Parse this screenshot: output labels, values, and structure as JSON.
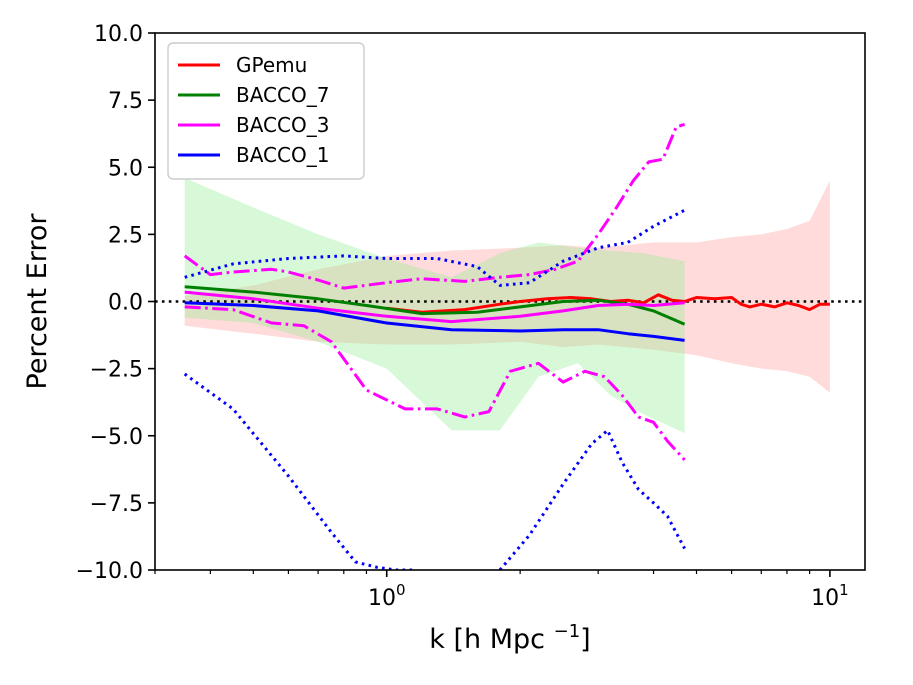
{
  "chart_data": {
    "type": "line",
    "xscale": "log",
    "xlabel": "k [h Mpc",
    "xlabel_sup": "−1",
    "xlabel_close": "]",
    "ylabel": "Percent Error",
    "xlim": [
      0.3,
      12
    ],
    "ylim": [
      -10,
      10
    ],
    "x_ticks": [
      {
        "value": 1,
        "base": "10",
        "exp": "0"
      },
      {
        "value": 10,
        "base": "10",
        "exp": "1"
      }
    ],
    "y_ticks": [
      {
        "value": 10,
        "label": "10.0"
      },
      {
        "value": 7.5,
        "label": "7.5"
      },
      {
        "value": 5,
        "label": "5.0"
      },
      {
        "value": 2.5,
        "label": "2.5"
      },
      {
        "value": 0,
        "label": "0.0"
      },
      {
        "value": -2.5,
        "label": "−2.5"
      },
      {
        "value": -5,
        "label": "−5.0"
      },
      {
        "value": -7.5,
        "label": "−7.5"
      },
      {
        "value": -10,
        "label": "−10.0"
      }
    ],
    "reference_line": {
      "y": 0,
      "style": "dotted",
      "color": "#000000"
    },
    "legend": {
      "location": "upper-left",
      "entries": [
        {
          "label": "GPemu",
          "color": "#ff0000"
        },
        {
          "label": "BACCO_7",
          "color": "#008000"
        },
        {
          "label": "BACCO_3",
          "color": "#ff00ff"
        },
        {
          "label": "BACCO_1",
          "color": "#0000ff"
        }
      ]
    },
    "bands": [
      {
        "name": "GPemu range",
        "color": "#ff9999",
        "opacity": 0.35,
        "x": [
          0.35,
          0.5,
          0.7,
          1.0,
          1.4,
          2.0,
          2.5,
          3.0,
          4.0,
          5.0,
          6.0,
          7.0,
          8.0,
          9.0,
          10.0
        ],
        "upper": [
          0.2,
          0.6,
          1.2,
          1.7,
          1.9,
          2.0,
          2.1,
          2.0,
          2.2,
          2.2,
          2.4,
          2.5,
          2.7,
          3.0,
          4.5
        ],
        "lower": [
          -0.9,
          -1.2,
          -1.5,
          -1.6,
          -1.6,
          -1.5,
          -1.7,
          -1.6,
          -1.8,
          -2.0,
          -2.3,
          -2.5,
          -2.6,
          -2.8,
          -3.4
        ]
      },
      {
        "name": "BACCO_7 range",
        "color": "#90ee90",
        "opacity": 0.35,
        "x": [
          0.35,
          0.5,
          0.7,
          1.0,
          1.4,
          1.8,
          2.2,
          2.7,
          3.2,
          3.8,
          4.7
        ],
        "upper": [
          4.6,
          3.5,
          2.5,
          1.6,
          0.9,
          1.8,
          2.2,
          2.0,
          1.9,
          1.8,
          1.5
        ],
        "lower": [
          -0.6,
          -0.8,
          -1.5,
          -2.5,
          -4.8,
          -4.8,
          -2.8,
          -2.3,
          -3.5,
          -4.2,
          -4.9
        ]
      }
    ],
    "series": [
      {
        "name": "GPemu",
        "color": "#ff0000",
        "style": "solid",
        "x": [
          1.0,
          1.2,
          1.5,
          1.8,
          2.0,
          2.3,
          2.6,
          2.9,
          3.2,
          3.5,
          3.8,
          4.1,
          4.4,
          4.7,
          5.0,
          5.5,
          6.0,
          6.3,
          6.6,
          7.0,
          7.5,
          8.0,
          8.5,
          9.0,
          9.5,
          10.0
        ],
        "y": [
          -0.25,
          -0.4,
          -0.3,
          -0.1,
          0.0,
          0.1,
          0.15,
          0.1,
          0.0,
          0.05,
          -0.05,
          0.25,
          0.05,
          0.0,
          0.15,
          0.1,
          0.15,
          -0.1,
          -0.2,
          -0.1,
          -0.2,
          -0.05,
          -0.15,
          -0.3,
          -0.1,
          -0.1
        ]
      },
      {
        "name": "BACCO_7",
        "color": "#008000",
        "style": "solid",
        "x": [
          0.35,
          0.5,
          0.7,
          0.9,
          1.2,
          1.6,
          2.0,
          2.5,
          3.0,
          3.5,
          4.0,
          4.7
        ],
        "y": [
          0.55,
          0.35,
          0.1,
          -0.15,
          -0.45,
          -0.4,
          -0.2,
          0.0,
          0.05,
          -0.1,
          -0.35,
          -0.85
        ]
      },
      {
        "name": "BACCO_3 mean",
        "color": "#ff00ff",
        "style": "solid",
        "x": [
          0.35,
          0.5,
          0.7,
          1.0,
          1.4,
          2.0,
          2.5,
          3.0,
          3.5,
          4.0,
          4.7
        ],
        "y": [
          0.35,
          0.1,
          -0.25,
          -0.55,
          -0.75,
          -0.55,
          -0.35,
          -0.15,
          -0.1,
          -0.15,
          -0.05
        ]
      },
      {
        "name": "BACCO_1 mean",
        "color": "#0000ff",
        "style": "solid",
        "x": [
          0.35,
          0.5,
          0.7,
          1.0,
          1.4,
          2.0,
          2.5,
          3.0,
          3.5,
          4.0,
          4.7
        ],
        "y": [
          -0.05,
          -0.15,
          -0.35,
          -0.8,
          -1.05,
          -1.1,
          -1.05,
          -1.05,
          -1.2,
          -1.3,
          -1.45
        ]
      },
      {
        "name": "BACCO_3 upper",
        "color": "#ff00ff",
        "style": "dashdot",
        "x": [
          0.35,
          0.4,
          0.45,
          0.5,
          0.55,
          0.6,
          0.7,
          0.8,
          1.0,
          1.2,
          1.5,
          1.8,
          2.1,
          2.4,
          2.7,
          3.0,
          3.3,
          3.6,
          3.9,
          4.2,
          4.5,
          4.7
        ],
        "y": [
          1.7,
          1.0,
          1.1,
          1.15,
          1.2,
          1.1,
          0.8,
          0.5,
          0.7,
          0.85,
          0.75,
          0.9,
          1.0,
          1.2,
          1.5,
          2.5,
          3.5,
          4.5,
          5.2,
          5.3,
          6.5,
          6.6
        ]
      },
      {
        "name": "BACCO_3 lower",
        "color": "#ff00ff",
        "style": "dashdot",
        "x": [
          0.35,
          0.45,
          0.55,
          0.65,
          0.75,
          0.9,
          1.1,
          1.3,
          1.5,
          1.7,
          1.9,
          2.2,
          2.5,
          2.8,
          3.1,
          3.4,
          3.7,
          4.0,
          4.3,
          4.7
        ],
        "y": [
          -0.2,
          -0.3,
          -0.8,
          -0.9,
          -1.5,
          -3.3,
          -4.0,
          -4.0,
          -4.3,
          -4.1,
          -2.6,
          -2.3,
          -3.0,
          -2.6,
          -2.8,
          -3.5,
          -4.3,
          -4.5,
          -5.2,
          -5.9
        ]
      },
      {
        "name": "BACCO_1 upper",
        "color": "#0000ff",
        "style": "dotted",
        "x": [
          0.35,
          0.45,
          0.6,
          0.8,
          1.0,
          1.3,
          1.6,
          1.8,
          2.1,
          2.5,
          3.0,
          3.5,
          4.0,
          4.7
        ],
        "y": [
          0.9,
          1.4,
          1.6,
          1.7,
          1.6,
          1.6,
          1.3,
          0.6,
          0.7,
          1.5,
          2.0,
          2.2,
          2.8,
          3.4
        ]
      },
      {
        "name": "BACCO_1 lower left",
        "color": "#0000ff",
        "style": "dotted",
        "x": [
          0.35,
          0.45,
          0.6,
          0.75,
          0.85,
          0.95,
          1.05,
          1.15
        ],
        "y": [
          -2.7,
          -4.0,
          -6.5,
          -8.6,
          -9.7,
          -9.9,
          -10.0,
          -10.0
        ]
      },
      {
        "name": "BACCO_1 lower right",
        "color": "#0000ff",
        "style": "dotted",
        "x": [
          1.8,
          2.1,
          2.5,
          2.9,
          3.15,
          3.4,
          3.7,
          4.0,
          4.3,
          4.7
        ],
        "y": [
          -10.0,
          -8.7,
          -6.8,
          -5.3,
          -4.8,
          -6.0,
          -7.0,
          -7.5,
          -8.0,
          -9.2
        ]
      }
    ]
  }
}
